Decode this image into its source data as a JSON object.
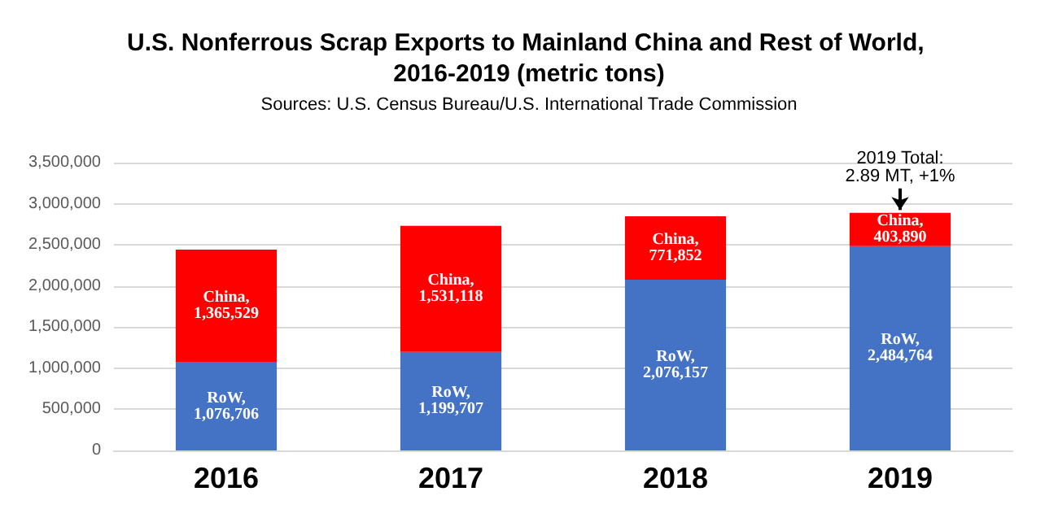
{
  "chart_data": {
    "type": "bar",
    "title": "U.S. Nonferrous Scrap Exports to Mainland China and Rest of World, 2016-2019 (metric tons)",
    "subtitle": "Sources: U.S. Census Bureau/U.S. International Trade Commission",
    "categories": [
      "2016",
      "2017",
      "2018",
      "2019"
    ],
    "series": [
      {
        "name": "RoW,",
        "color": "#4472c4",
        "values": [
          1076706,
          1199707,
          2076157,
          2484764
        ],
        "value_labels": [
          "1,076,706",
          "1,199,707",
          "2,076,157",
          "2,484,764"
        ]
      },
      {
        "name": "China,",
        "color": "#ff0000",
        "values": [
          1365529,
          1531118,
          771852,
          403890
        ],
        "value_labels": [
          "1,365,529",
          "1,531,118",
          "771,852",
          "403,890"
        ]
      }
    ],
    "stacked": true,
    "ylim": [
      0,
      3500000
    ],
    "yticks": [
      0,
      {
        "value": 500000,
        "label": "500,000"
      },
      {
        "value": 1000000,
        "label": "1,000,000"
      },
      {
        "value": 1500000,
        "label": "1,500,000"
      },
      {
        "value": 2000000,
        "label": "2,000,000"
      },
      {
        "value": 2500000,
        "label": "2,500,000"
      },
      {
        "value": 3000000,
        "label": "3,000,000"
      },
      {
        "value": 3500000,
        "label": "3,500,000"
      }
    ],
    "grid": "y",
    "legend": false,
    "annotations": [
      {
        "text": "2019 Total: 2.89 MT, +1%",
        "x": "2019",
        "y": 2888654
      }
    ]
  }
}
